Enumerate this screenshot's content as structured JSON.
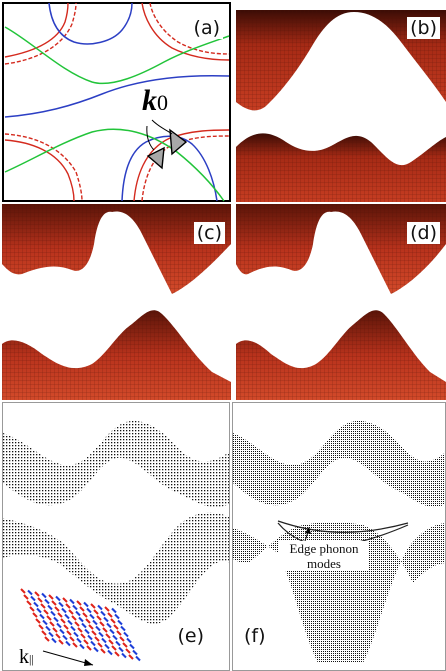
{
  "panels": {
    "a": {
      "label": "(a)",
      "vector_label": "k",
      "vector_subscript": "0"
    },
    "b": {
      "label": "(b)"
    },
    "c": {
      "label": "(c)"
    },
    "d": {
      "label": "(d)"
    },
    "e": {
      "label": "(e)",
      "k_label": "k",
      "k_subscript": "||"
    },
    "f": {
      "label": "(f)",
      "annotation_line1": "Edge phonon",
      "annotation_line2": "modes"
    }
  },
  "colors": {
    "surface": "#b8321c",
    "surface_dark": "#5a1408",
    "contour_red": "#d42a1e",
    "contour_blue": "#2c3fc4",
    "contour_green": "#22c43a",
    "lattice_red": "#e0241a",
    "lattice_blue": "#1d3fd8",
    "dots": "#111111",
    "arrow_fill": "#a8a8a8"
  }
}
